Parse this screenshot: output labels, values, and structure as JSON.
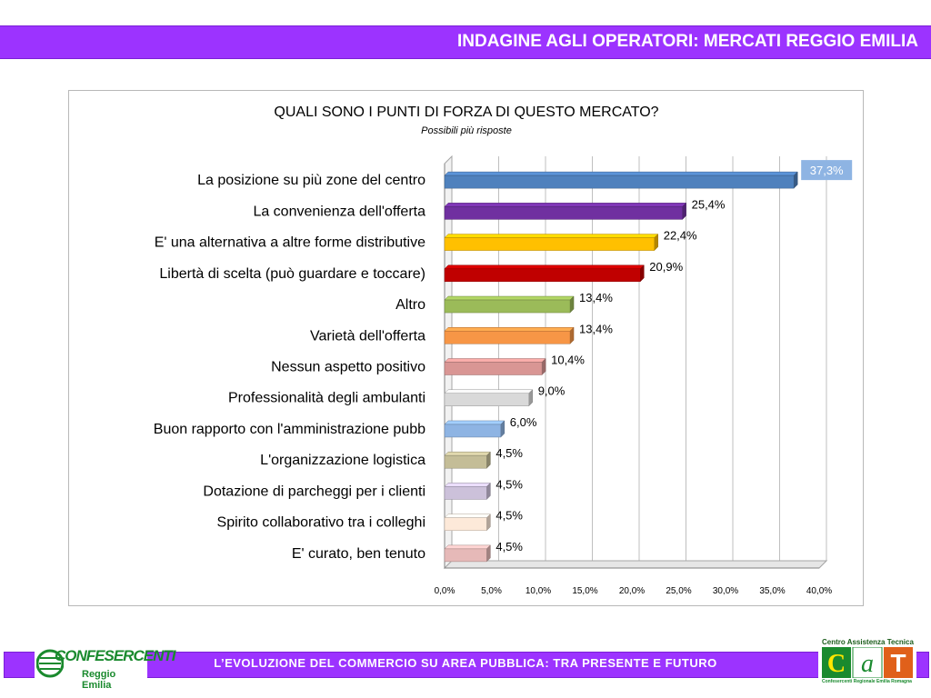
{
  "header": {
    "title": "INDAGINE AGLI OPERATORI: MERCATI REGGIO EMILIA"
  },
  "footer": {
    "text": "L’EVOLUZIONE DEL COMMERCIO SU AREA PUBBLICA: TRA PRESENTE E FUTURO"
  },
  "logos": {
    "left": {
      "brand": "CONFESERCENTI",
      "sub": "Reggio Emilia"
    },
    "right": {
      "top": "Centro Assistenza Tecnica",
      "letters": "CAT",
      "bottom": "Confesercenti Regionale Emilia Romagna"
    }
  },
  "chart_data": {
    "type": "bar",
    "orientation": "horizontal",
    "title": "QUALI SONO I PUNTI DI FORZA DI QUESTO MERCATO?",
    "subtitle": "Possibili più risposte",
    "xlabel": "",
    "ylabel": "",
    "xlim": [
      0,
      40
    ],
    "x_ticks": [
      "0,0%",
      "5,0%",
      "10,0%",
      "15,0%",
      "20,0%",
      "25,0%",
      "30,0%",
      "35,0%",
      "40,0%"
    ],
    "grid": true,
    "legend": "none",
    "categories": [
      "La posizione su più zone del centro",
      "La convenienza dell'offerta",
      "E' una alternativa a altre forme distributive",
      "Libertà di scelta (può guardare e toccare)",
      "Altro",
      "Varietà dell'offerta",
      "Nessun aspetto positivo",
      "Professionalità degli ambulanti",
      "Buon rapporto con l'amministrazione pubb",
      "L'organizzazione logistica",
      "Dotazione di parcheggi per i clienti",
      "Spirito collaborativo tra i colleghi",
      "E' curato, ben tenuto"
    ],
    "values": [
      37.3,
      25.4,
      22.4,
      20.9,
      13.4,
      13.4,
      10.4,
      9.0,
      6.0,
      4.5,
      4.5,
      4.5,
      4.5
    ],
    "value_labels": [
      "37,3%",
      "25,4%",
      "22,4%",
      "20,9%",
      "13,4%",
      "13,4%",
      "10,4%",
      "9,0%",
      "6,0%",
      "4,5%",
      "4,5%",
      "4,5%",
      "4,5%"
    ],
    "colors": [
      "#4f81bd",
      "#7030a0",
      "#ffc000",
      "#c00000",
      "#9bbb59",
      "#f79646",
      "#d99694",
      "#d9d9d9",
      "#8eb4e3",
      "#c4bd97",
      "#ccc1da",
      "#fde9d9",
      "#e6b9b8"
    ],
    "highlight_label_color": "#8eb4e3"
  }
}
